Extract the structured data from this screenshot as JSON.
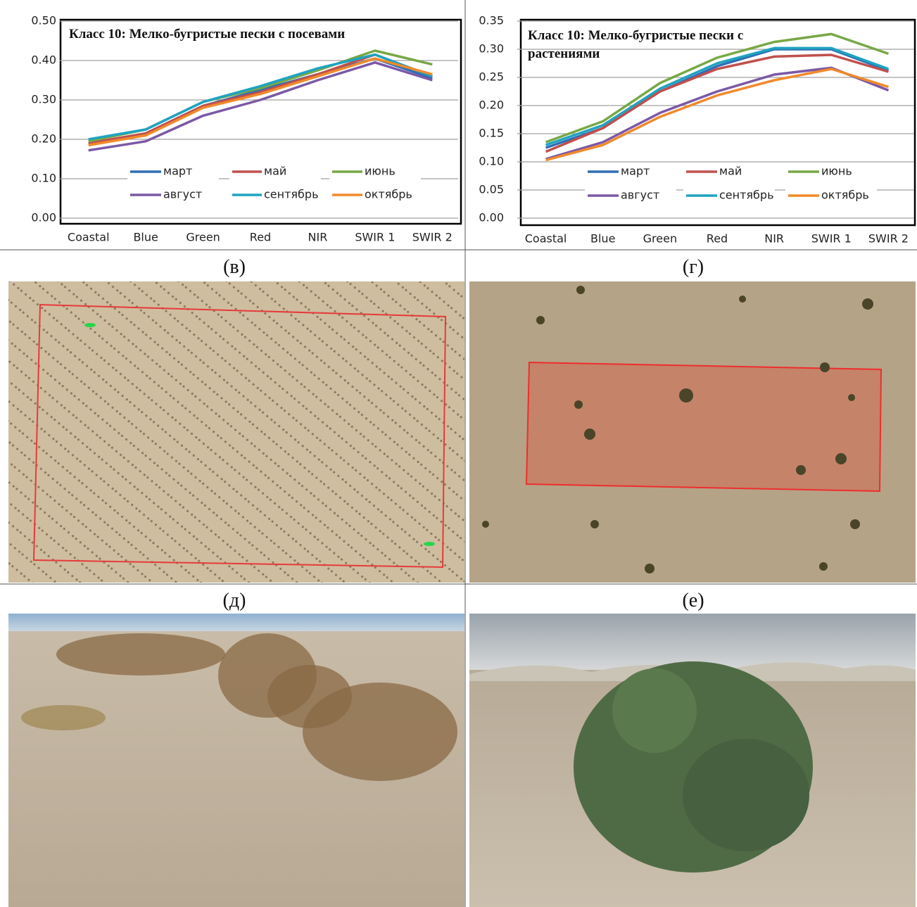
{
  "chart_data": [
    {
      "type": "line",
      "title": "Класс 10: Мелко-бугристые пески с посевами",
      "categories": [
        "Coastal",
        "Blue",
        "Green",
        "Red",
        "NIR",
        "SWIR 1",
        "SWIR 2"
      ],
      "ylim": [
        0,
        0.5
      ],
      "yticks": [
        {
          "value": 0,
          "label": "0.00"
        },
        {
          "value": 0.1,
          "label": "0.10"
        },
        {
          "value": 0.2,
          "label": "0.20"
        },
        {
          "value": 0.3,
          "label": "0.30"
        },
        {
          "value": 0.4,
          "label": "0.40"
        },
        {
          "value": 0.5,
          "label": "0.50"
        }
      ],
      "grid": true,
      "series": [
        {
          "name": "март",
          "color": "#2f6eb5",
          "values": [
            0.19,
            0.215,
            0.285,
            0.325,
            0.365,
            0.405,
            0.355
          ]
        },
        {
          "name": "май",
          "color": "#c0504d",
          "values": [
            0.19,
            0.215,
            0.285,
            0.32,
            0.365,
            0.415,
            0.36
          ]
        },
        {
          "name": "июнь",
          "color": "#77a844",
          "values": [
            0.195,
            0.225,
            0.295,
            0.33,
            0.375,
            0.425,
            0.39
          ]
        },
        {
          "name": "август",
          "color": "#7b58a6",
          "values": [
            0.172,
            0.195,
            0.26,
            0.3,
            0.35,
            0.395,
            0.35
          ]
        },
        {
          "name": "сентябрь",
          "color": "#1fa3c0",
          "values": [
            0.2,
            0.225,
            0.295,
            0.335,
            0.38,
            0.415,
            0.36
          ]
        },
        {
          "name": "октябрь",
          "color": "#f08a2c",
          "values": [
            0.185,
            0.21,
            0.28,
            0.315,
            0.36,
            0.405,
            0.365
          ]
        }
      ]
    },
    {
      "type": "line",
      "title": "Класс 10: Мелко-бугристые пески с растениями",
      "categories": [
        "Coastal",
        "Blue",
        "Green",
        "Red",
        "NIR",
        "SWIR 1",
        "SWIR 2"
      ],
      "ylim": [
        0,
        0.35
      ],
      "yticks": [
        {
          "value": 0,
          "label": "0.00"
        },
        {
          "value": 0.05,
          "label": "0.05"
        },
        {
          "value": 0.1,
          "label": "0.10"
        },
        {
          "value": 0.15,
          "label": "0.15"
        },
        {
          "value": 0.2,
          "label": "0.20"
        },
        {
          "value": 0.25,
          "label": "0.25"
        },
        {
          "value": 0.3,
          "label": "0.30"
        },
        {
          "value": 0.35,
          "label": "0.35"
        }
      ],
      "grid": true,
      "series": [
        {
          "name": "март",
          "color": "#2f6eb5",
          "values": [
            0.125,
            0.16,
            0.225,
            0.27,
            0.3,
            0.3,
            0.262
          ]
        },
        {
          "name": "май",
          "color": "#c0504d",
          "values": [
            0.118,
            0.16,
            0.225,
            0.265,
            0.287,
            0.29,
            0.26
          ]
        },
        {
          "name": "июнь",
          "color": "#77a844",
          "values": [
            0.135,
            0.172,
            0.24,
            0.285,
            0.313,
            0.327,
            0.292
          ]
        },
        {
          "name": "август",
          "color": "#7b58a6",
          "values": [
            0.105,
            0.135,
            0.187,
            0.225,
            0.255,
            0.267,
            0.227
          ]
        },
        {
          "name": "сентябрь",
          "color": "#1fa3c0",
          "values": [
            0.13,
            0.165,
            0.23,
            0.275,
            0.302,
            0.302,
            0.265
          ]
        },
        {
          "name": "октябрь",
          "color": "#f08a2c",
          "values": [
            0.103,
            0.13,
            0.18,
            0.218,
            0.245,
            0.265,
            0.233
          ]
        }
      ]
    }
  ],
  "panel_labels": [
    "(в)",
    "(г)",
    "(д)",
    "(е)"
  ]
}
